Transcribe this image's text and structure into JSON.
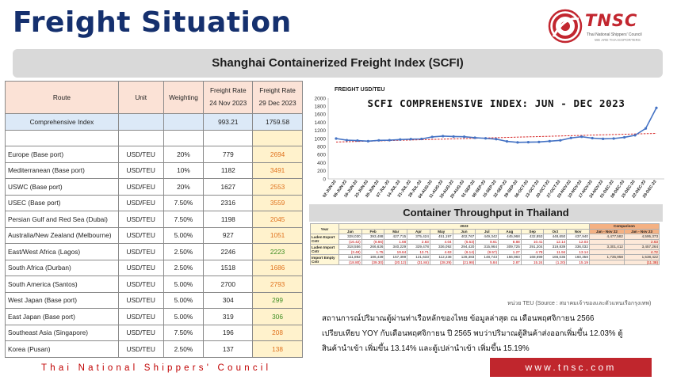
{
  "title": "Freight Situation",
  "logo": {
    "brand": "TNSC",
    "line1": "Thai National Shippers' Council",
    "line2": "WE ARE THAI EXPORTERS"
  },
  "scfi_banner": "Shanghai Containerized Freight Index (SCFI)",
  "rates_table": {
    "headers": {
      "route": "Route",
      "unit": "Unit",
      "weighting": "Weighting",
      "rate": "Freight Rate",
      "date1": "24 Nov 2023",
      "date2": "29 Dec 2023"
    },
    "comprehensive": {
      "route": "Comprehensive Index",
      "v1": "993.21",
      "v2": "1759.58"
    },
    "rows": [
      {
        "route": "Europe (Base port)",
        "unit": "USD/TEU",
        "weighting": "20%",
        "v1": "779",
        "v2": "2694",
        "trend": "up"
      },
      {
        "route": "Mediterranean (Base port)",
        "unit": "USD/TEU",
        "weighting": "10%",
        "v1": "1182",
        "v2": "3491",
        "trend": "up"
      },
      {
        "route": "USWC (Base port)",
        "unit": "USD/FEU",
        "weighting": "20%",
        "v1": "1627",
        "v2": "2553",
        "trend": "up"
      },
      {
        "route": "USEC (Base port)",
        "unit": "USD/FEU",
        "weighting": "7.50%",
        "v1": "2316",
        "v2": "3559",
        "trend": "up"
      },
      {
        "route": "Persian Gulf and Red Sea (Dubai)",
        "unit": "USD/TEU",
        "weighting": "7.50%",
        "v1": "1198",
        "v2": "2045",
        "trend": "up"
      },
      {
        "route": "Australia/New Zealand (Melbourne)",
        "unit": "USD/TEU",
        "weighting": "5.00%",
        "v1": "927",
        "v2": "1051",
        "trend": "up"
      },
      {
        "route": "East/West Africa (Lagos)",
        "unit": "USD/TEU",
        "weighting": "2.50%",
        "v1": "2246",
        "v2": "2223",
        "trend": "down"
      },
      {
        "route": "South Africa (Durban)",
        "unit": "USD/TEU",
        "weighting": "2.50%",
        "v1": "1518",
        "v2": "1686",
        "trend": "up"
      },
      {
        "route": "South America (Santos)",
        "unit": "USD/TEU",
        "weighting": "5.00%",
        "v1": "2700",
        "v2": "2793",
        "trend": "up"
      },
      {
        "route": "West Japan (Base port)",
        "unit": "USD/TEU",
        "weighting": "5.00%",
        "v1": "304",
        "v2": "299",
        "trend": "down"
      },
      {
        "route": "East Japan (Base port)",
        "unit": "USD/TEU",
        "weighting": "5.00%",
        "v1": "319",
        "v2": "306",
        "trend": "down"
      },
      {
        "route": "Southeast Asia (Singapore)",
        "unit": "USD/TEU",
        "weighting": "7.50%",
        "v1": "196",
        "v2": "208",
        "trend": "up"
      },
      {
        "route": "Korea (Pusan)",
        "unit": "USD/TEU",
        "weighting": "2.50%",
        "v1": "137",
        "v2": "138",
        "trend": "up"
      }
    ]
  },
  "colors": {
    "up": "#e0731f",
    "down": "#3c8c20",
    "title": "#15306e",
    "brand": "#c2262f"
  },
  "chart_data": {
    "type": "line",
    "title": "SCFI COMPREHENSIVE INDEX: JUN - DEC 2023",
    "ylabel": "FREIGHT USD/TEU",
    "ylim": [
      0,
      2000
    ],
    "yticks": [
      0,
      200,
      400,
      600,
      800,
      1000,
      1200,
      1400,
      1600,
      1800,
      2000
    ],
    "grid": false,
    "trendline": true,
    "x": [
      "02-JUN-23",
      "09-JUN-23",
      "16-JUN-23",
      "23-JUN-23",
      "30-JUN-23",
      "07-JUL-23",
      "14-JUL-23",
      "21-JUL-23",
      "28-JUL-23",
      "04-AUG-23",
      "11-AUG-23",
      "18-AUG-23",
      "25-AUG-23",
      "01-SEP-23",
      "08-SEP-23",
      "15-SEP-23",
      "22-SEP-23",
      "29-SEP-23",
      "06-OCT-23",
      "13-OCT-23",
      "20-OCT-23",
      "27-OCT-23",
      "03-NOV-23",
      "10-NOV-23",
      "17-NOV-23",
      "24-NOV-23",
      "01-DEC-23",
      "08-DEC-23",
      "15-DEC-23",
      "22-DEC-23",
      "29-DEC-23"
    ],
    "series": [
      {
        "values": [
          1000,
          960,
          950,
          935,
          955,
          960,
          975,
          985,
          990,
          1040,
          1060,
          1050,
          1045,
          1020,
          1005,
          985,
          930,
          905,
          910,
          915,
          935,
          955,
          1015,
          1045,
          1010,
          993,
          1000,
          1030,
          1080,
          1250,
          1760
        ]
      }
    ]
  },
  "throughput": {
    "banner": "Container Throughput in Thailand",
    "year_label": "Year",
    "year": "2023",
    "comparison_label": "Comparison",
    "months": [
      "Jan",
      "Feb",
      "Mar",
      "Apr",
      "May",
      "Jun",
      "Jul",
      "Aug",
      "Sep",
      "Oct",
      "Nov"
    ],
    "comp_headers": [
      "Jan - Nov 22",
      "Jan - Nov 23"
    ],
    "rows": [
      {
        "label": "Laden Export Cntr",
        "values": [
          "328,030",
          "393,488",
          "427,715",
          "375,424",
          "451,197",
          "402,767",
          "449,342",
          "445,968",
          "432,853",
          "448,650",
          "437,940"
        ],
        "comp": [
          "4,477,582",
          "4,595,373"
        ],
        "pct": [
          "(16.42)",
          "(8.66)",
          "1.68",
          "2.83",
          "4.04",
          "(5.53)",
          "8.61",
          "8.88",
          "10.41",
          "12.14",
          "12.03"
        ],
        "pct_comp": [
          "",
          "2.63"
        ]
      },
      {
        "label": "Laden Import Cntr",
        "values": [
          "318,556",
          "266,626",
          "340,229",
          "329,478",
          "336,092",
          "294,420",
          "315,964",
          "309,725",
          "291,204",
          "319,839",
          "336,032"
        ],
        "comp": [
          "3,301,412",
          "3,457,264"
        ],
        "pct": [
          "(3.48)",
          "1.75",
          "19.64",
          "13.71",
          "4.63",
          "(6.14)",
          "(9.57)",
          "1.27",
          "4.78",
          "11.94",
          "13.14"
        ],
        "pct_comp": [
          "",
          "4.72"
        ]
      },
      {
        "label": "Import Empty Cntr",
        "values": [
          "111,892",
          "186,439",
          "157,399",
          "121,633",
          "112,238",
          "128,383",
          "148,743",
          "156,983",
          "168,699",
          "166,035",
          "160,358"
        ],
        "comp": [
          "1,735,958",
          "1,538,422"
        ],
        "pct": [
          "(18.80)",
          "(39.30)",
          "(20.12)",
          "(31.84)",
          "(28.29)",
          "(21.98)",
          "5.84",
          "2.87",
          "15.24",
          "(1.20)",
          "15.19"
        ],
        "pct_comp": [
          "",
          "(11.38)"
        ]
      }
    ],
    "unit_note": "หน่วย TEU (Source : สมาคมเจ้าของและตัวแทนเรือกรุงเทพ)"
  },
  "paragraph": {
    "line1": "สถานการณ์ปริมาณตู้ผ่านท่าเรือหลักของไทย ข้อมูลล่าสุด ณ เดือนพฤศจิกายน 2566",
    "line2": "เปรียบเทียบ YOY กับเดือนพฤศจิกายน ปี 2565 พบว่าปริมาณตู้สินค้าส่งออกเพิ่มขึ้น 12.03%  ตู้",
    "line3": "สินค้านำเข้า เพิ่มขึ้น 13.14% และตู้เปล่านำเข้า เพิ่มขึ้น 15.19%"
  },
  "footer": {
    "left": "Thai National Shippers' Council",
    "right": "www.tnsc.com"
  }
}
